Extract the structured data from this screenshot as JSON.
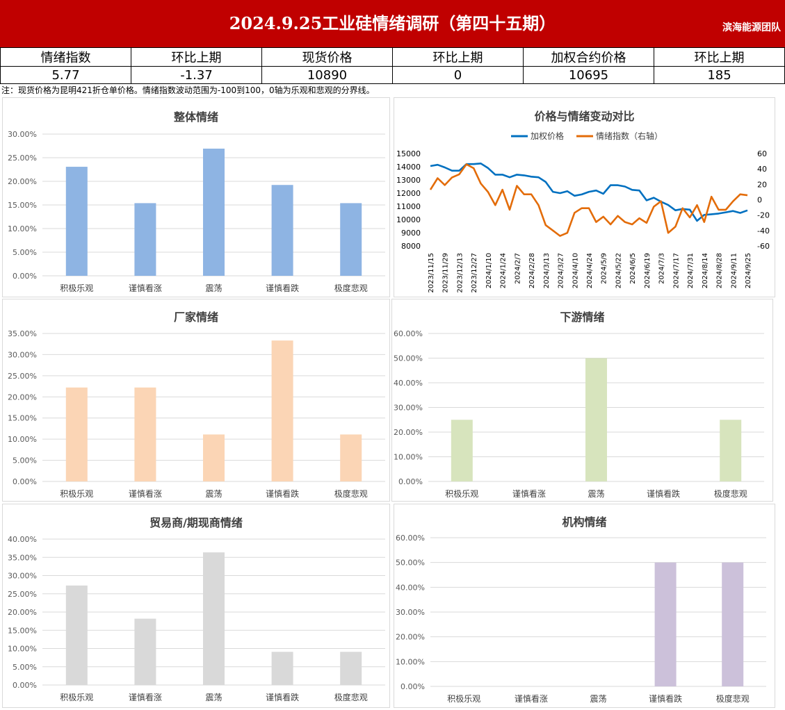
{
  "header": {
    "title": "2024.9.25工业硅情绪调研（第四十五期）",
    "team": "滨海能源团队"
  },
  "stats": {
    "labels": [
      "情绪指数",
      "环比上期",
      "现货价格",
      "环比上期",
      "加权合约价格",
      "环比上期"
    ],
    "values": [
      "5.77",
      "-1.37",
      "10890",
      "0",
      "10695",
      "185"
    ]
  },
  "note": "注：现货价格为昆明421折仓单价格。情绪指数波动范围为-100到100，0轴为乐观和悲观的分界线。",
  "colors": {
    "header_bg": "#c00000",
    "overall": "#8eb4e3",
    "factory": "#fbd5b5",
    "downstream": "#d7e4bd",
    "trader": "#d9d9d9",
    "institution": "#ccc1da",
    "price_line": "#0070c0",
    "sentiment_line": "#e36c09"
  },
  "chart_data": [
    {
      "id": "overall",
      "type": "bar",
      "title": "整体情绪",
      "categories": [
        "积极乐观",
        "谨慎看涨",
        "震荡",
        "谨慎看跌",
        "极度悲观"
      ],
      "values": [
        23.08,
        15.38,
        26.92,
        19.23,
        15.38
      ],
      "ylim": [
        0,
        30
      ],
      "yticks": [
        0,
        5,
        10,
        15,
        20,
        25,
        30
      ],
      "ytick_labels": [
        "0.00%",
        "5.00%",
        "10.00%",
        "15.00%",
        "20.00%",
        "25.00%",
        "30.00%"
      ],
      "grid": true
    },
    {
      "id": "price_vs_sentiment",
      "type": "line",
      "title": "价格与情绪变动对比",
      "legend_position": "top",
      "x": [
        "2023/11/15",
        "2023/11/22",
        "2023/11/29",
        "2023/12/6",
        "2023/12/13",
        "2023/12/20",
        "2023/12/27",
        "2024/1/3",
        "2024/1/10",
        "2024/1/17",
        "2024/1/24",
        "2024/1/31",
        "2024/2/7",
        "2024/2/21",
        "2024/2/28",
        "2024/3/6",
        "2024/3/13",
        "2024/3/20",
        "2024/3/27",
        "2024/4/3",
        "2024/4/10",
        "2024/4/17",
        "2024/4/24",
        "2024/5/1",
        "2024/5/9",
        "2024/5/15",
        "2024/5/22",
        "2024/5/29",
        "2024/6/5",
        "2024/6/12",
        "2024/6/19",
        "2024/6/26",
        "2024/7/3",
        "2024/7/10",
        "2024/7/17",
        "2024/7/24",
        "2024/7/31",
        "2024/8/7",
        "2024/8/14",
        "2024/8/21",
        "2024/8/28",
        "2024/9/4",
        "2024/9/11",
        "2024/9/18",
        "2024/9/25"
      ],
      "x_tick_labels": [
        "2023/11/15",
        "2023/11/29",
        "2023/12/13",
        "2023/12/27",
        "2024/1/10",
        "2024/1/24",
        "2024/2/7",
        "2024/2/28",
        "2024/3/13",
        "2024/3/27",
        "2024/4/10",
        "2024/4/24",
        "2024/5/9",
        "2024/5/22",
        "2024/6/5",
        "2024/6/19",
        "2024/7/3",
        "2024/7/17",
        "2024/7/31",
        "2024/8/14",
        "2024/8/28",
        "2024/9/11",
        "2024/9/25"
      ],
      "series": [
        {
          "name": "加权价格",
          "axis": "left",
          "values": [
            14050,
            14150,
            13950,
            13700,
            13700,
            14200,
            14200,
            14250,
            13900,
            13400,
            13400,
            13200,
            13400,
            13350,
            13250,
            13200,
            12850,
            12100,
            12000,
            12150,
            11800,
            11900,
            12100,
            12200,
            11950,
            12600,
            12600,
            12500,
            12250,
            12200,
            11450,
            11650,
            11350,
            11100,
            10700,
            10800,
            10750,
            9900,
            10350,
            10400,
            10450,
            10550,
            10650,
            10500,
            10695
          ]
        },
        {
          "name": "情绪指数（右轴）",
          "axis": "right",
          "values": [
            13,
            28,
            19,
            29,
            33,
            46,
            41,
            21,
            10,
            -7,
            13,
            -13,
            18,
            7,
            7,
            -7,
            -33,
            -40,
            -47,
            -43,
            -17,
            -11,
            -11,
            -29,
            -22,
            -32,
            -21,
            -29,
            -32,
            -24,
            -30,
            -9,
            -2,
            -43,
            -35,
            -11,
            -23,
            -7,
            -29,
            4,
            -13,
            -13,
            -2,
            7,
            5.77
          ]
        }
      ],
      "ylim_left": [
        8000,
        15000
      ],
      "yticks_left": [
        8000,
        9000,
        10000,
        11000,
        12000,
        13000,
        14000,
        15000
      ],
      "ylim_right": [
        -60,
        60
      ],
      "yticks_right": [
        -60,
        -40,
        -20,
        0,
        20,
        40,
        60
      ],
      "grid": false
    },
    {
      "id": "factory",
      "type": "bar",
      "title": "厂家情绪",
      "categories": [
        "积极乐观",
        "谨慎看涨",
        "震荡",
        "谨慎看跌",
        "极度悲观"
      ],
      "values": [
        22.22,
        22.22,
        11.11,
        33.33,
        11.11
      ],
      "ylim": [
        0,
        35
      ],
      "yticks": [
        0,
        5,
        10,
        15,
        20,
        25,
        30,
        35
      ],
      "ytick_labels": [
        "0.00%",
        "5.00%",
        "10.00%",
        "15.00%",
        "20.00%",
        "25.00%",
        "30.00%",
        "35.00%"
      ],
      "grid": true
    },
    {
      "id": "downstream",
      "type": "bar",
      "title": "下游情绪",
      "categories": [
        "积极乐观",
        "谨慎看涨",
        "震荡",
        "谨慎看跌",
        "极度悲观"
      ],
      "values": [
        25,
        0,
        50,
        0,
        25
      ],
      "ylim": [
        0,
        60
      ],
      "yticks": [
        0,
        10,
        20,
        30,
        40,
        50,
        60
      ],
      "ytick_labels": [
        "0.00%",
        "10.00%",
        "20.00%",
        "30.00%",
        "40.00%",
        "50.00%",
        "60.00%"
      ],
      "grid": true
    },
    {
      "id": "trader",
      "type": "bar",
      "title": "贸易商/期现商情绪",
      "categories": [
        "积极乐观",
        "谨慎看涨",
        "震荡",
        "谨慎看跌",
        "极度悲观"
      ],
      "values": [
        27.27,
        18.18,
        36.36,
        9.09,
        9.09
      ],
      "ylim": [
        0,
        40
      ],
      "yticks": [
        0,
        5,
        10,
        15,
        20,
        25,
        30,
        35,
        40
      ],
      "ytick_labels": [
        "0.00%",
        "5.00%",
        "10.00%",
        "15.00%",
        "20.00%",
        "25.00%",
        "30.00%",
        "35.00%",
        "40.00%"
      ],
      "grid": true
    },
    {
      "id": "institution",
      "type": "bar",
      "title": "机构情绪",
      "categories": [
        "积极乐观",
        "谨慎看涨",
        "震荡",
        "谨慎看跌",
        "极度悲观"
      ],
      "values": [
        0,
        0,
        0,
        50,
        50
      ],
      "ylim": [
        0,
        60
      ],
      "yticks": [
        0,
        10,
        20,
        30,
        40,
        50,
        60
      ],
      "ytick_labels": [
        "0.00%",
        "10.00%",
        "20.00%",
        "30.00%",
        "40.00%",
        "50.00%",
        "60.00%"
      ],
      "grid": true
    }
  ]
}
